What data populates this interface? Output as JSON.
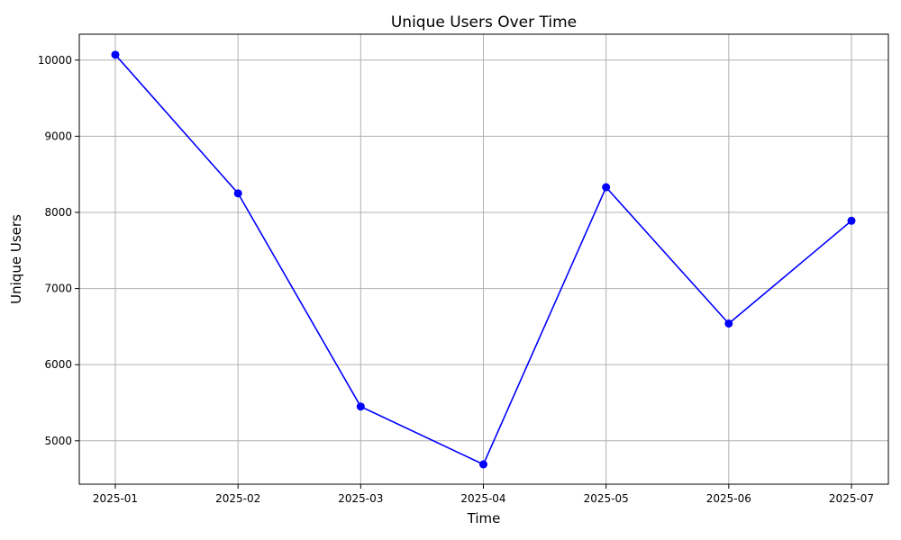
{
  "chart_data": {
    "type": "line",
    "title": "Unique Users Over Time",
    "xlabel": "Time",
    "ylabel": "Unique Users",
    "x": [
      "2025-01",
      "2025-02",
      "2025-03",
      "2025-04",
      "2025-05",
      "2025-06",
      "2025-07"
    ],
    "series": [
      {
        "values": [
          10070,
          8250,
          5450,
          4690,
          8330,
          6540,
          7890
        ],
        "color": "#0000ff",
        "marker": "circle"
      }
    ],
    "ylim": [
      4430,
      10340
    ],
    "yticks": [
      5000,
      6000,
      7000,
      8000,
      9000,
      10000
    ],
    "grid": true
  }
}
